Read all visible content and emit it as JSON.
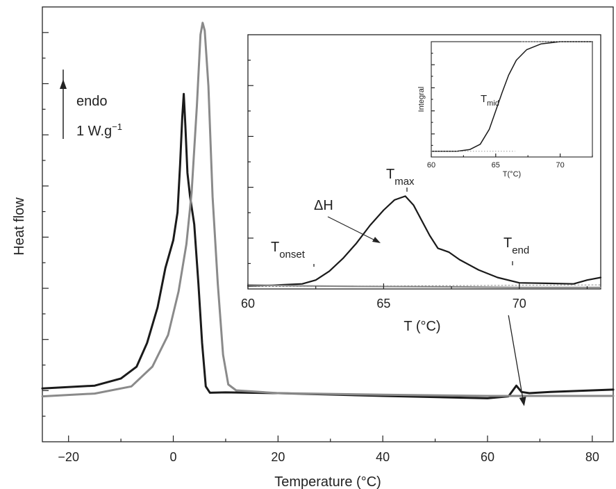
{
  "chart_data": [
    {
      "type": "line",
      "role": "main",
      "xlabel": "Temperature (°C)",
      "ylabel": "Heat flow",
      "xlim": [
        -25,
        84
      ],
      "ylim": [
        0,
        110
      ],
      "x_ticks": [
        -20,
        0,
        20,
        40,
        60,
        80
      ],
      "y_ticks_labeled": false,
      "grid": false,
      "legend": "none",
      "scale_bar": {
        "label_line1": "endo",
        "label_line2_base": "1 W.g",
        "label_line2_sup": "−1",
        "length_units": 20
      },
      "annotation_arrow": {
        "from": [
          64,
          32
        ],
        "to": [
          67,
          9
        ]
      },
      "series": [
        {
          "color": "#1a1a1a",
          "points": [
            [
              -25,
              13.5
            ],
            [
              -15,
              14.2
            ],
            [
              -10,
              16
            ],
            [
              -7,
              19
            ],
            [
              -5,
              25
            ],
            [
              -3,
              34
            ],
            [
              -1.5,
              44
            ],
            [
              0,
              51
            ],
            [
              0.8,
              58
            ],
            [
              1.3,
              70
            ],
            [
              1.7,
              82
            ],
            [
              2.0,
              88
            ],
            [
              2.3,
              80
            ],
            [
              2.7,
              68
            ],
            [
              3.2,
              62
            ],
            [
              4,
              55
            ],
            [
              4.8,
              40
            ],
            [
              5.5,
              25
            ],
            [
              6.2,
              14
            ],
            [
              7,
              12.4
            ],
            [
              10,
              12.5
            ],
            [
              20,
              12.3
            ],
            [
              40,
              11.6
            ],
            [
              60,
              11
            ],
            [
              64,
              11.5
            ],
            [
              65.5,
              14.2
            ],
            [
              66.5,
              12.6
            ],
            [
              68,
              12.3
            ],
            [
              72,
              12.6
            ],
            [
              84,
              13.2
            ]
          ]
        },
        {
          "color": "#8a8a8a",
          "points": [
            [
              -25,
              11.5
            ],
            [
              -15,
              12.2
            ],
            [
              -8,
              14
            ],
            [
              -4,
              19
            ],
            [
              -1,
              27
            ],
            [
              1,
              38
            ],
            [
              2.5,
              50
            ],
            [
              3.5,
              63
            ],
            [
              4.5,
              85
            ],
            [
              5.2,
              103
            ],
            [
              5.6,
              106
            ],
            [
              6,
              104
            ],
            [
              6.7,
              90
            ],
            [
              7.5,
              62
            ],
            [
              8.5,
              40
            ],
            [
              9.5,
              22
            ],
            [
              10.5,
              14.5
            ],
            [
              12,
              13
            ],
            [
              20,
              12.3
            ],
            [
              40,
              11.9
            ],
            [
              60,
              11.6
            ],
            [
              84,
              11.6
            ]
          ]
        }
      ]
    },
    {
      "type": "line",
      "role": "inset",
      "xlabel": "T (°C)",
      "xlim": [
        60,
        73
      ],
      "ylim": [
        0,
        100
      ],
      "x_ticks": [
        60,
        65,
        70
      ],
      "y_ticks_labeled": false,
      "annotations": [
        {
          "base": "T",
          "sub": "onset"
        },
        {
          "base": "T",
          "sub": "max"
        },
        {
          "base": "T",
          "sub": "end"
        },
        {
          "text": "ΔH"
        }
      ],
      "series": [
        {
          "color": "#1a1a1a",
          "points": [
            [
              60,
              1.2
            ],
            [
              61,
              1.5
            ],
            [
              62,
              2
            ],
            [
              62.5,
              3.5
            ],
            [
              63,
              7
            ],
            [
              63.5,
              12
            ],
            [
              64,
              18
            ],
            [
              64.5,
              25
            ],
            [
              65,
              31
            ],
            [
              65.4,
              35
            ],
            [
              65.8,
              36.5
            ],
            [
              66.1,
              33
            ],
            [
              66.4,
              27
            ],
            [
              66.7,
              21
            ],
            [
              67,
              16
            ],
            [
              67.4,
              14.5
            ],
            [
              67.8,
              11.5
            ],
            [
              68.5,
              7.5
            ],
            [
              69.2,
              4.5
            ],
            [
              70,
              2.4
            ],
            [
              71,
              2.2
            ],
            [
              72,
              2
            ],
            [
              72.5,
              3.5
            ],
            [
              73,
              4.5
            ]
          ]
        },
        {
          "color": "#8a8a8a",
          "points": [
            [
              60,
              1.6
            ],
            [
              61,
              1.4
            ],
            [
              62,
              1.2
            ],
            [
              64,
              1
            ],
            [
              66,
              0.9
            ],
            [
              68,
              0.8
            ],
            [
              70,
              0.6
            ],
            [
              73,
              0.6
            ]
          ]
        },
        {
          "color": "#888888",
          "dashed": true,
          "points": [
            [
              60,
              0.9
            ],
            [
              73,
              1.6
            ]
          ]
        }
      ]
    },
    {
      "type": "line",
      "role": "nested-inset",
      "ylabel": "Integral",
      "xlabel": "T(°C)",
      "xlim": [
        60,
        72.5
      ],
      "ylim": [
        0,
        1
      ],
      "x_ticks": [
        60,
        65,
        70
      ],
      "annotations": [
        {
          "base": "T",
          "sub": "mid"
        }
      ],
      "series": [
        {
          "color": "#1a1a1a",
          "points": [
            [
              60,
              0.05
            ],
            [
              62,
              0.05
            ],
            [
              63,
              0.065
            ],
            [
              63.8,
              0.11
            ],
            [
              64.5,
              0.24
            ],
            [
              65,
              0.4
            ],
            [
              65.5,
              0.56
            ],
            [
              66,
              0.71
            ],
            [
              66.6,
              0.84
            ],
            [
              67.4,
              0.93
            ],
            [
              68.5,
              0.98
            ],
            [
              70,
              1.0
            ],
            [
              72.5,
              1.0
            ]
          ]
        }
      ],
      "guides_dotted": [
        {
          "points": [
            [
              60,
              0.05
            ],
            [
              66.5,
              0.05
            ]
          ]
        },
        {
          "points": [
            [
              67,
              1.0
            ],
            [
              72.5,
              1.0
            ]
          ]
        }
      ]
    }
  ]
}
